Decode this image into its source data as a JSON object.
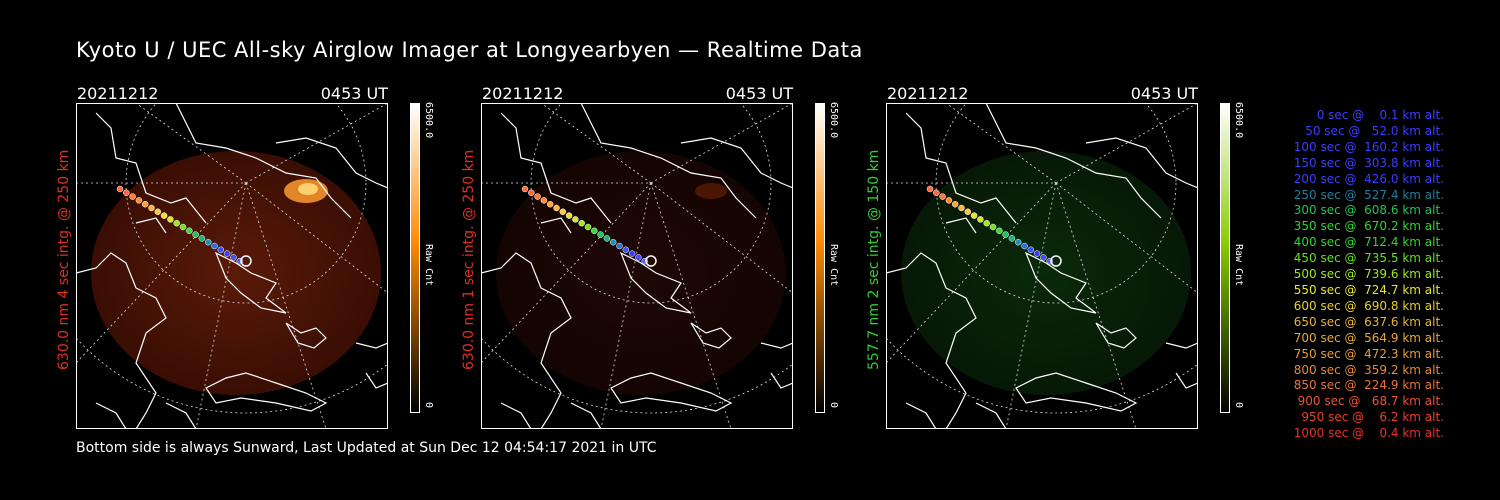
{
  "title": "Kyoto U / UEC All-sky Airglow Imager at Longyearbyen — Realtime Data",
  "footer": "Bottom side is always Sunward, Last Updated at Sun Dec 12 04:54:17 2021 in UTC",
  "panels": [
    {
      "date": "20211212",
      "time": "0453 UT",
      "side_label": "630.0 nm 4 sec intg. @ 250 km",
      "label_color": "#e03020",
      "cbar_top": "6500.0",
      "cbar_mid": "Raw Cnt",
      "cbar_bot": "0",
      "cbar_color": "#ff8a00"
    },
    {
      "date": "20211212",
      "time": "0453 UT",
      "side_label": "630.0 nm 1 sec intg. @ 250 km",
      "label_color": "#e03020",
      "cbar_top": "6500.0",
      "cbar_mid": "Raw Cnt",
      "cbar_bot": "0",
      "cbar_color": "#ff8a00"
    },
    {
      "date": "20211212",
      "time": "0453 UT",
      "side_label": "557.7 nm 2 sec intg. @ 150 km",
      "label_color": "#30d030",
      "cbar_top": "6500.0",
      "cbar_mid": "Raw Cnt",
      "cbar_bot": "0",
      "cbar_color": "#8acc00"
    }
  ],
  "legend": [
    {
      "text": "0 sec @    0.1 km alt.",
      "color": "#3c3cff"
    },
    {
      "text": "50 sec @   52.0 km alt.",
      "color": "#3c3cff"
    },
    {
      "text": "100 sec @  160.2 km alt.",
      "color": "#3c3cff"
    },
    {
      "text": "150 sec @  303.8 km alt.",
      "color": "#3c3cff"
    },
    {
      "text": "200 sec @  426.0 km alt.",
      "color": "#3c3cff"
    },
    {
      "text": "250 sec @  527.4 km alt.",
      "color": "#1e7fa0"
    },
    {
      "text": "300 sec @  608.6 km alt.",
      "color": "#22c25a"
    },
    {
      "text": "350 sec @  670.2 km alt.",
      "color": "#2fd52f"
    },
    {
      "text": "400 sec @  712.4 km alt.",
      "color": "#2fd52f"
    },
    {
      "text": "450 sec @  735.5 km alt.",
      "color": "#5fe01f"
    },
    {
      "text": "500 sec @  739.6 km alt.",
      "color": "#9fe81f"
    },
    {
      "text": "550 sec @  724.7 km alt.",
      "color": "#e6e62e"
    },
    {
      "text": "600 sec @  690.8 km alt.",
      "color": "#e6d02e"
    },
    {
      "text": "650 sec @  637.6 km alt.",
      "color": "#e8b43a"
    },
    {
      "text": "700 sec @  564.9 km alt.",
      "color": "#e8a83a"
    },
    {
      "text": "750 sec @  472.3 km alt.",
      "color": "#e89a3a"
    },
    {
      "text": "800 sec @  359.2 km alt.",
      "color": "#e88a3a"
    },
    {
      "text": "850 sec @  224.9 km alt.",
      "color": "#e8733a"
    },
    {
      "text": "900 sec @   68.7 km alt.",
      "color": "#e8533a"
    },
    {
      "text": "950 sec @    6.2 km alt.",
      "color": "#e8402a"
    },
    {
      "text": "1000 sec @    0.4 km alt.",
      "color": "#e8302a"
    }
  ]
}
